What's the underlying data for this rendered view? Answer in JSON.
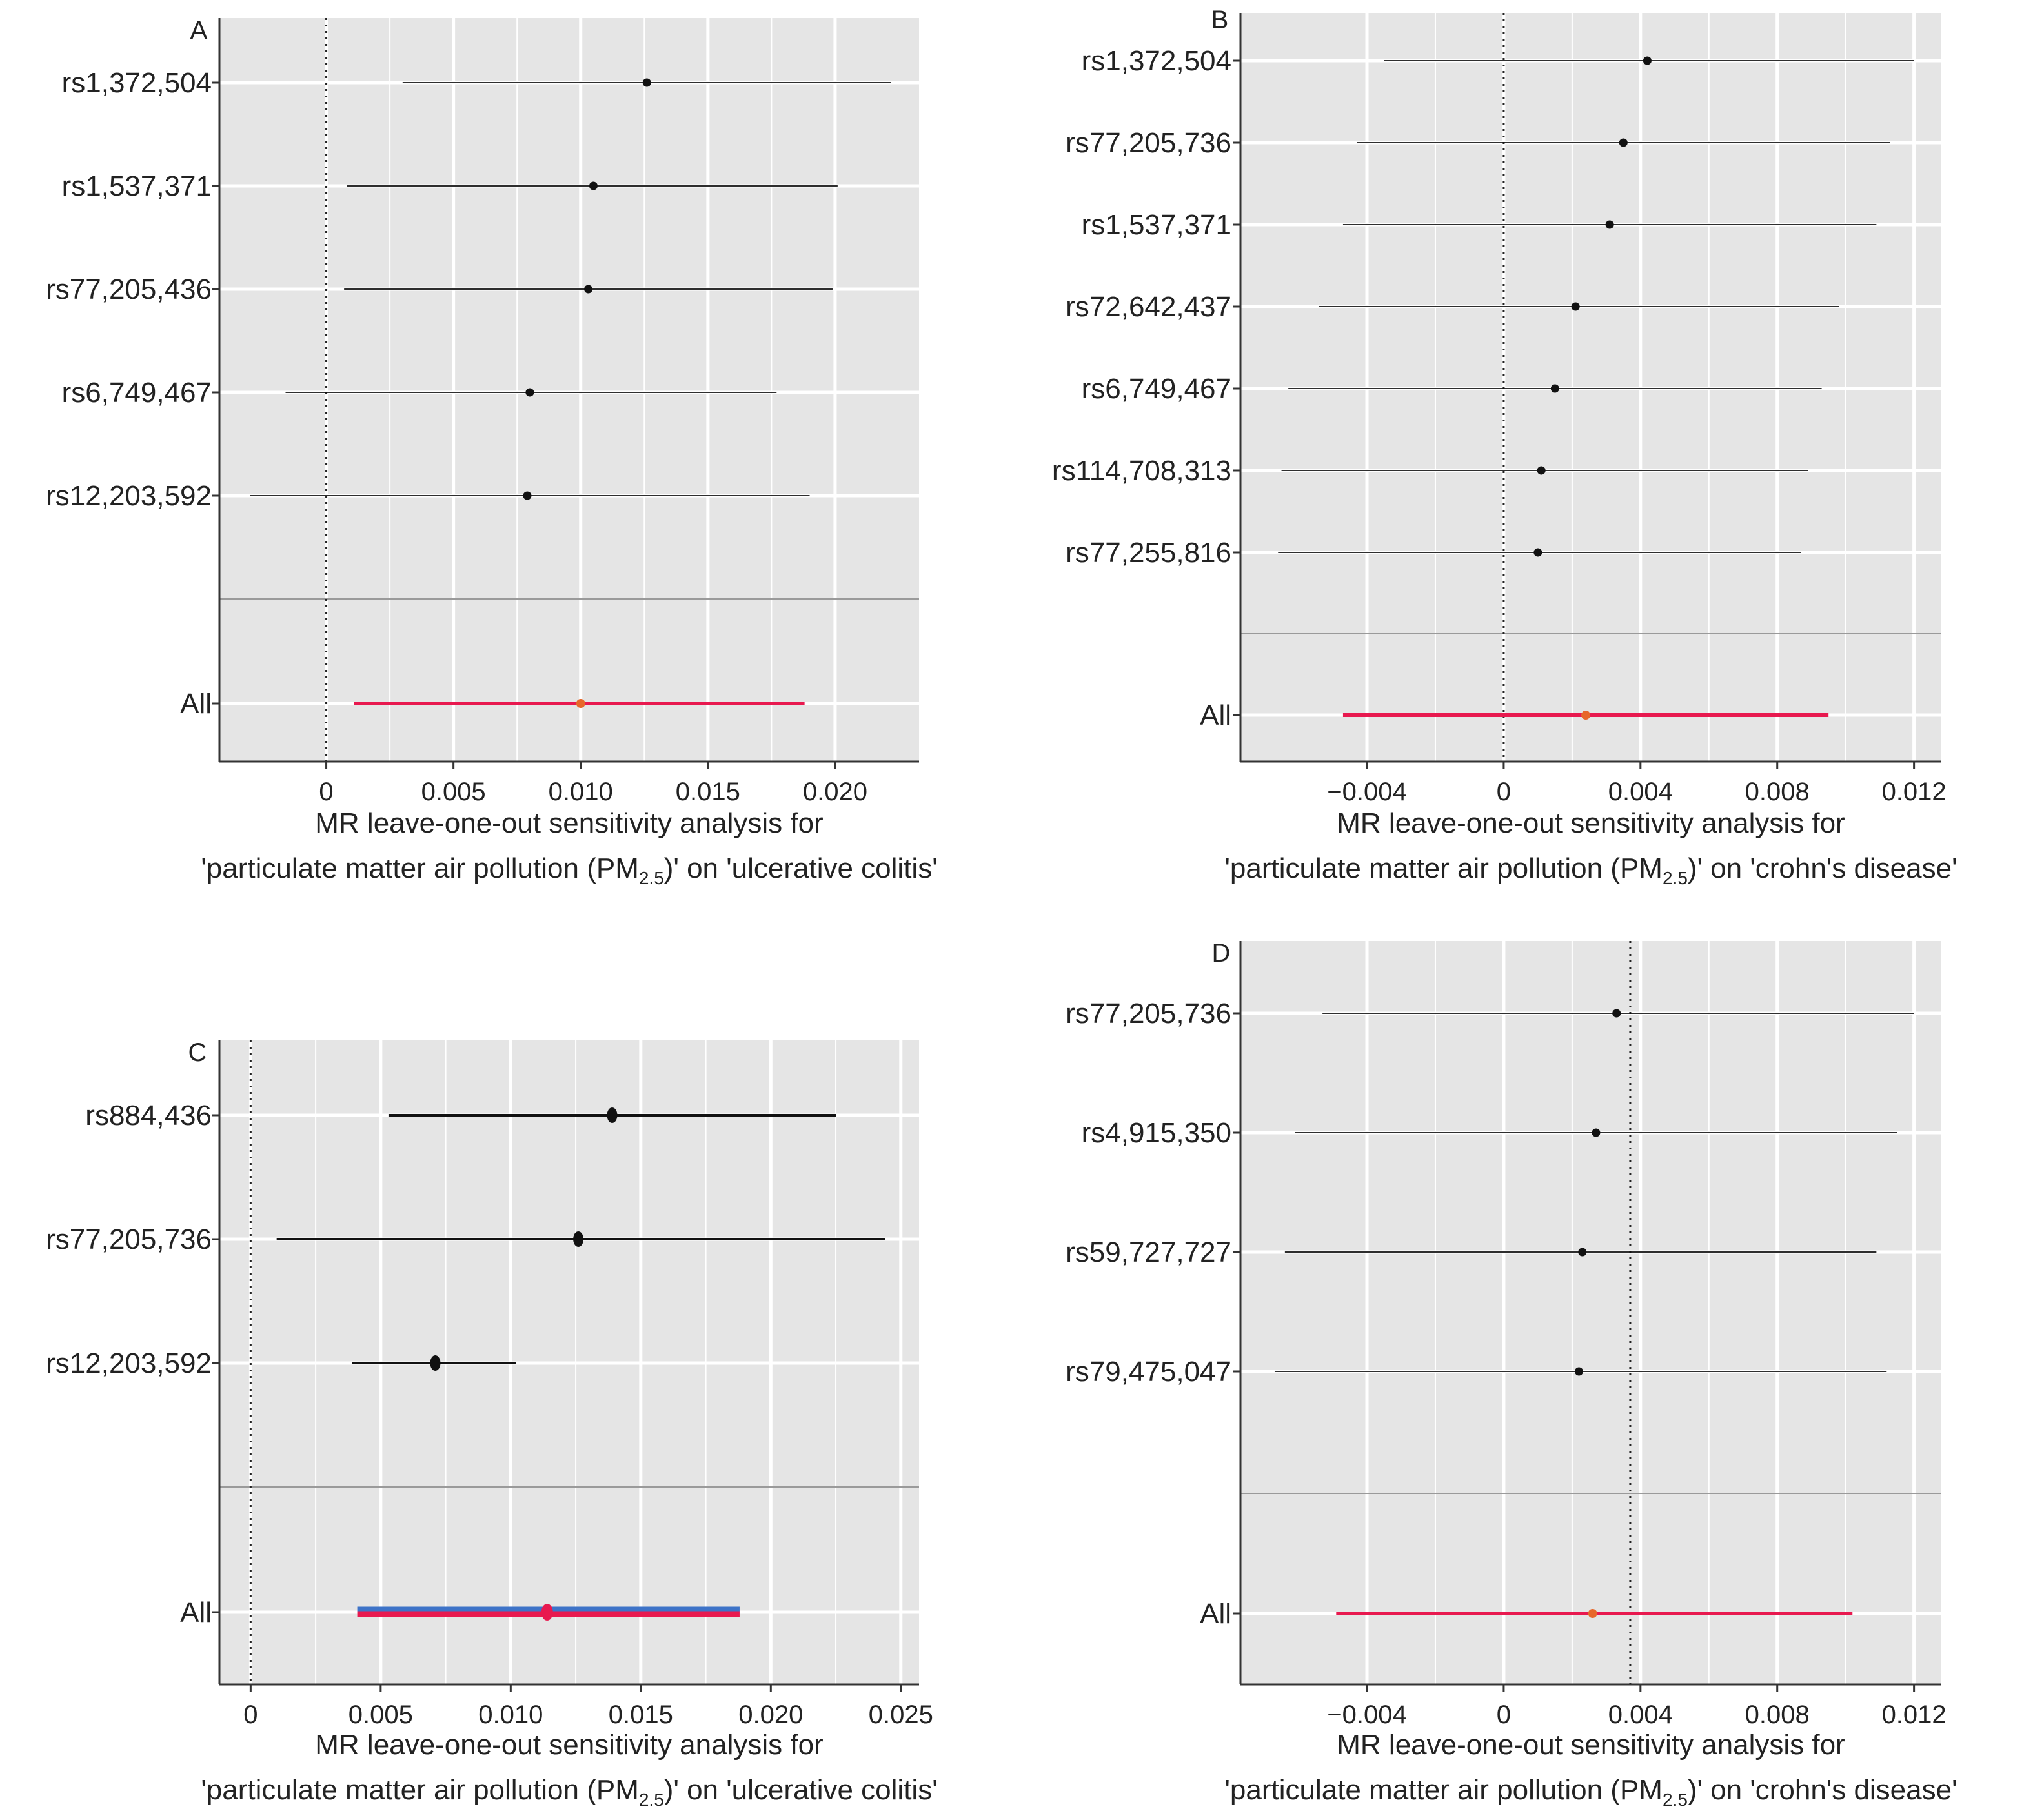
{
  "colors": {
    "panel_bg": "#e5e5e5",
    "grid": "#ffffff",
    "point": "#111111",
    "ci_line": "#111111",
    "overall_line": "#e8194f",
    "overall_point": "#e7672a",
    "overall_line_under": "#3d73c8",
    "axis": "#333333"
  },
  "chart_data": [
    {
      "panel": "A",
      "type": "forest",
      "caption_line1": "MR leave-one-out sensitivity analysis for",
      "caption_line2_pre": "'particulate matter air pollution (PM",
      "caption_sub": "2.5",
      "caption_line2_post": ")' on 'ulcerative colitis'",
      "xlim": [
        -0.0042,
        0.0233
      ],
      "ticks": [
        0,
        0.005,
        0.01,
        0.015,
        0.02
      ],
      "tick_labels": [
        "0",
        "0.005",
        "0.010",
        "0.015",
        "0.020"
      ],
      "ref_line": 0,
      "rows": [
        {
          "label": "rs1,372,504",
          "est": 0.0126,
          "lo": 0.003,
          "hi": 0.0222
        },
        {
          "label": "rs1,537,371",
          "est": 0.0105,
          "lo": 0.0008,
          "hi": 0.0201
        },
        {
          "label": "rs77,205,436",
          "est": 0.0103,
          "lo": 0.0007,
          "hi": 0.0199
        },
        {
          "label": "rs6,749,467",
          "est": 0.008,
          "lo": -0.0016,
          "hi": 0.0177
        },
        {
          "label": "rs12,203,592",
          "est": 0.0079,
          "lo": -0.003,
          "hi": 0.019
        }
      ],
      "overall": {
        "label": "All",
        "est": 0.01,
        "lo": 0.0011,
        "hi": 0.0188
      }
    },
    {
      "panel": "B",
      "type": "forest",
      "caption_line1": "MR leave-one-out sensitivity analysis for",
      "caption_line2_pre": "'particulate matter air pollution (PM",
      "caption_sub": "2.5",
      "caption_line2_post": ")' on 'crohn's disease'",
      "xlim": [
        -0.0077,
        0.0128
      ],
      "ticks": [
        -0.004,
        0,
        0.004,
        0.008,
        0.012
      ],
      "tick_labels": [
        "−0.004",
        "0",
        "0.004",
        "0.008",
        "0.012"
      ],
      "ref_line": 0,
      "rows": [
        {
          "label": "rs1,372,504",
          "est": 0.0042,
          "lo": -0.0035,
          "hi": 0.012
        },
        {
          "label": "rs77,205,736",
          "est": 0.0035,
          "lo": -0.0043,
          "hi": 0.0113
        },
        {
          "label": "rs1,537,371",
          "est": 0.0031,
          "lo": -0.0047,
          "hi": 0.0109
        },
        {
          "label": "rs72,642,437",
          "est": 0.0021,
          "lo": -0.0054,
          "hi": 0.0098
        },
        {
          "label": "rs6,749,467",
          "est": 0.0015,
          "lo": -0.0063,
          "hi": 0.0093
        },
        {
          "label": "rs114,708,313",
          "est": 0.0011,
          "lo": -0.0065,
          "hi": 0.0089
        },
        {
          "label": "rs77,255,816",
          "est": 0.001,
          "lo": -0.0066,
          "hi": 0.0087
        }
      ],
      "overall": {
        "label": "All",
        "est": 0.0024,
        "lo": -0.0047,
        "hi": 0.0095
      }
    },
    {
      "panel": "C",
      "type": "forest",
      "caption_line1": "MR leave-one-out sensitivity analysis for",
      "caption_line2_pre": "'particulate matter air pollution (PM",
      "caption_sub": "2.5",
      "caption_line2_post": ")' on 'ulcerative colitis'",
      "xlim": [
        -0.0012,
        0.0257
      ],
      "ticks": [
        0,
        0.005,
        0.01,
        0.015,
        0.02,
        0.025
      ],
      "tick_labels": [
        "0",
        "0.005",
        "0.010",
        "0.015",
        "0.020",
        "0.025"
      ],
      "ref_line": 0,
      "rows": [
        {
          "label": "rs884,436",
          "est": 0.0139,
          "lo": 0.0053,
          "hi": 0.0225
        },
        {
          "label": "rs77,205,736",
          "est": 0.0126,
          "lo": 0.001,
          "hi": 0.0244
        },
        {
          "label": "rs12,203,592",
          "est": 0.0071,
          "lo": 0.0039,
          "hi": 0.0102
        }
      ],
      "overall": {
        "label": "All",
        "est": 0.0114,
        "lo": 0.0041,
        "hi": 0.0188
      }
    },
    {
      "panel": "D",
      "type": "forest",
      "caption_line1": "MR leave-one-out sensitivity analysis for",
      "caption_line2_pre": "'particulate matter air pollution (PM",
      "caption_sub": "2.5",
      "caption_line2_post": ")' on 'crohn's disease'",
      "xlim": [
        -0.0077,
        0.0128
      ],
      "ticks": [
        -0.004,
        0,
        0.004,
        0.008,
        0.012
      ],
      "tick_labels": [
        "−0.004",
        "0",
        "0.004",
        "0.008",
        "0.012"
      ],
      "ref_line": 0.0037,
      "rows": [
        {
          "label": "rs77,205,736",
          "est": 0.0033,
          "lo": -0.0053,
          "hi": 0.012
        },
        {
          "label": "rs4,915,350",
          "est": 0.0027,
          "lo": -0.0061,
          "hi": 0.0115
        },
        {
          "label": "rs59,727,727",
          "est": 0.0023,
          "lo": -0.0064,
          "hi": 0.0109
        },
        {
          "label": "rs79,475,047",
          "est": 0.0022,
          "lo": -0.0067,
          "hi": 0.0112
        }
      ],
      "overall": {
        "label": "All",
        "est": 0.0026,
        "lo": -0.0049,
        "hi": 0.0102
      }
    }
  ]
}
